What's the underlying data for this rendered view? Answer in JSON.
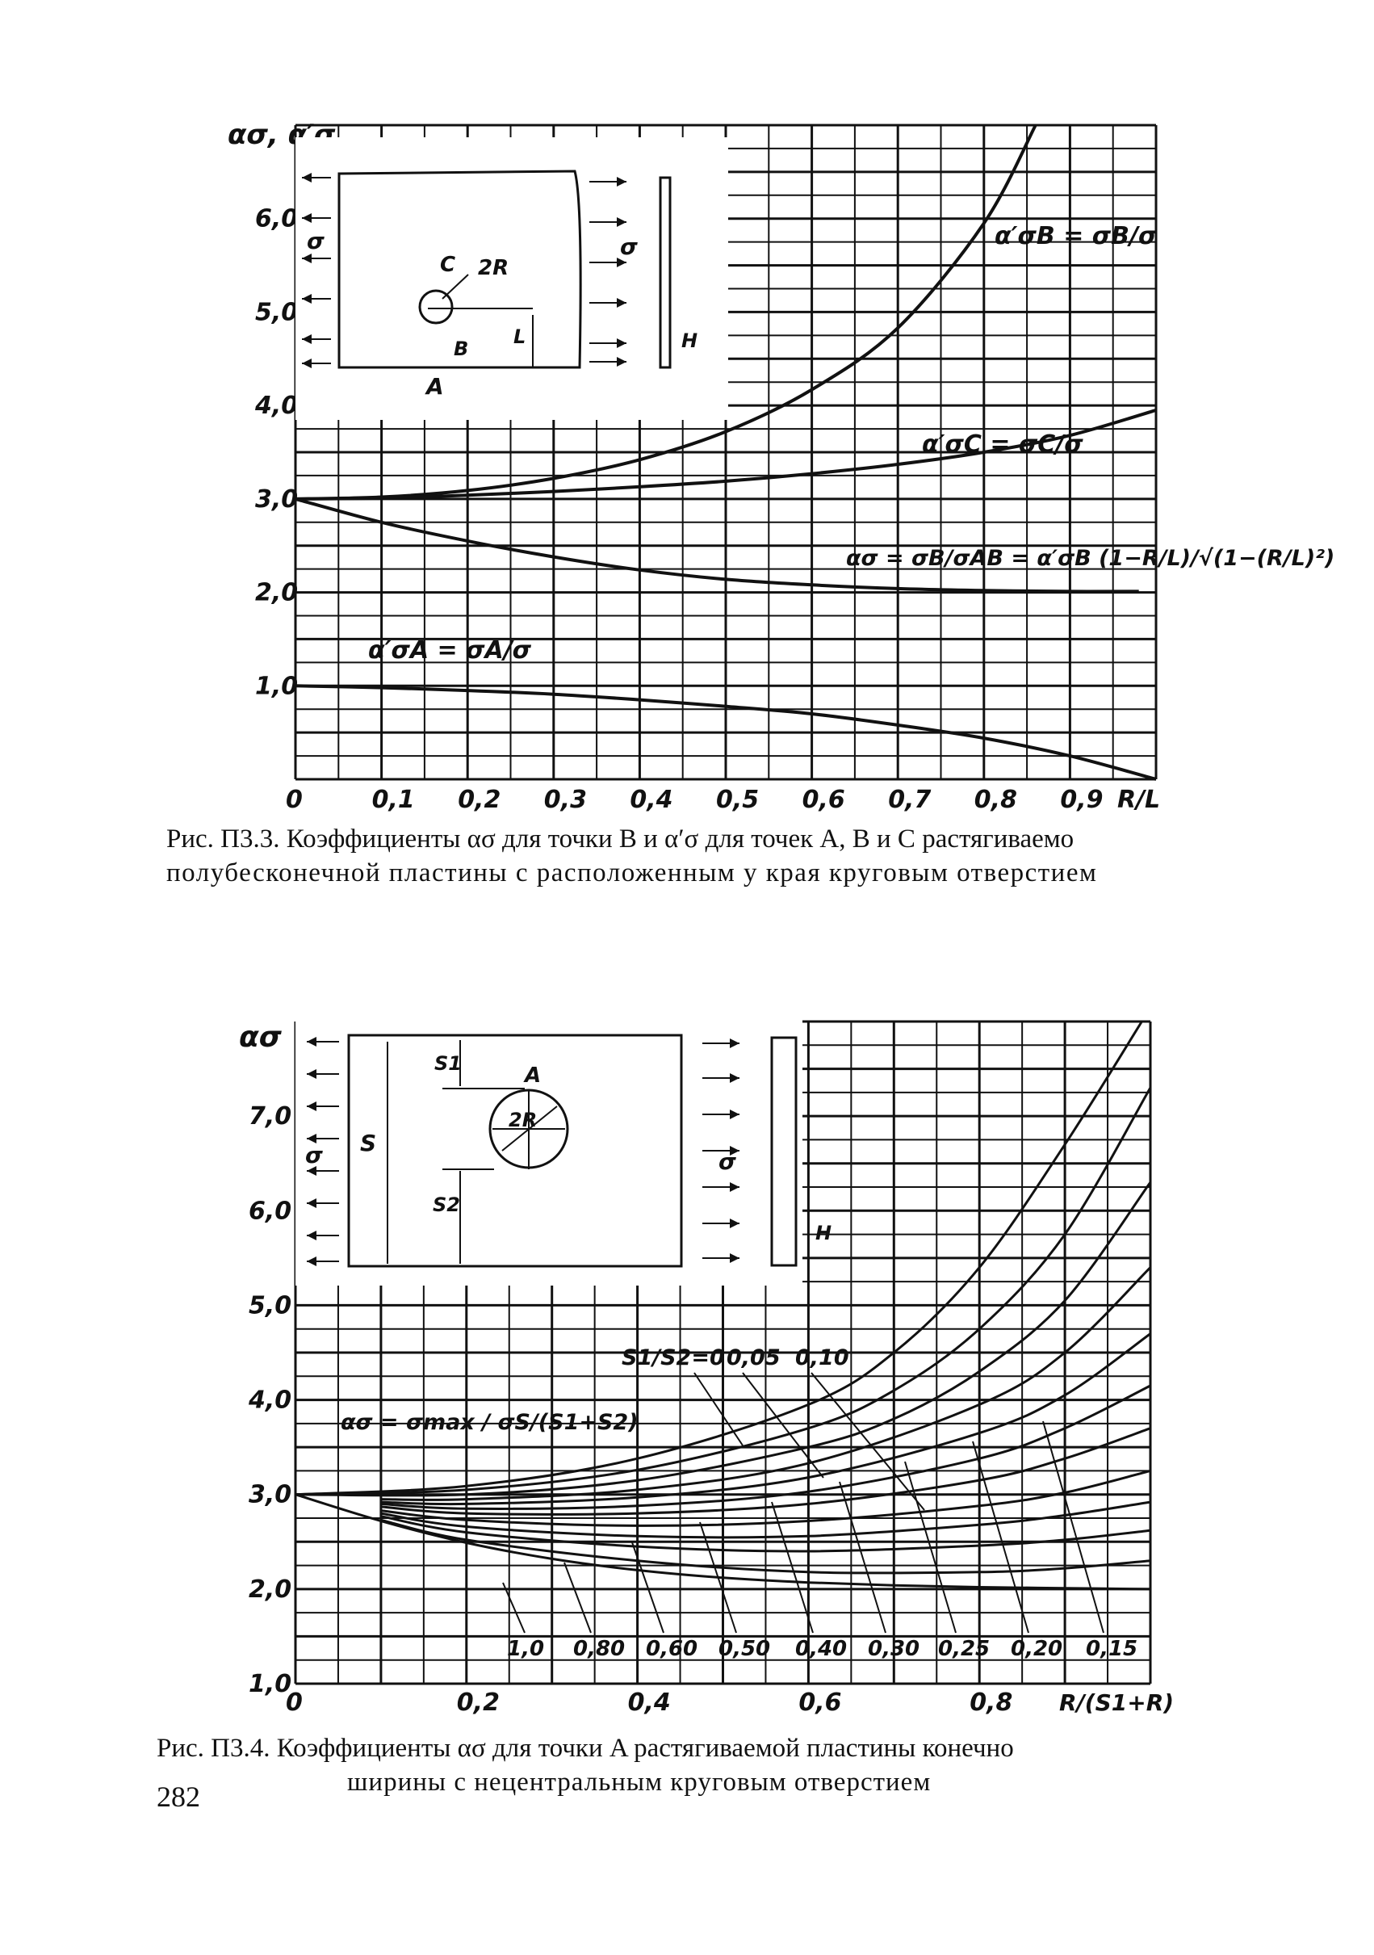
{
  "page_number": "282",
  "captions": {
    "fig1_line1": "Рис. П3.3. Коэффициенты ασ для точки B и α′σ для точек A, B и C растягиваемо",
    "fig1_line2": "полубесконечной пластины с расположенным у края круговым отверстием",
    "fig2_line1": "Рис. П3.4. Коэффициенты ασ для точки A растягиваемой пластины конечно",
    "fig2_line2": "ширины с нецентральным круговым отверстием"
  },
  "chart_data": [
    {
      "type": "line",
      "ylabel": "ασ, α′σ",
      "xlabel": "R/L",
      "xlim": [
        0,
        1.0
      ],
      "ylim": [
        0,
        7.0
      ],
      "grid": true,
      "x_tick_labels": [
        "0",
        "0,1",
        "0,2",
        "0,3",
        "0,4",
        "0,5",
        "0,6",
        "0,7",
        "0,8",
        "0,9"
      ],
      "y_tick_labels": [
        "1,0",
        "2,0",
        "3,0",
        "4,0",
        "5,0",
        "6,0"
      ],
      "annotations": [
        "α′σB = σB/σ",
        "α′σC = σC/σ",
        "ασ = σB/σAB = α′σB (1−R/L)/√(1−(R/L)²)",
        "α′σA = σA/σ"
      ],
      "inset_labels": [
        "σ",
        "σ",
        "C",
        "2R",
        "B",
        "A",
        "L",
        "H"
      ],
      "series": [
        {
          "x": [
            0,
            0.1,
            0.2,
            0.3,
            0.4,
            0.5,
            0.6,
            0.7,
            0.8,
            0.86
          ],
          "values": [
            3.0,
            3.02,
            3.09,
            3.22,
            3.42,
            3.72,
            4.17,
            4.83,
            5.95,
            7.0
          ]
        },
        {
          "x": [
            0,
            0.1,
            0.2,
            0.3,
            0.4,
            0.5,
            0.6,
            0.7,
            0.8,
            0.9,
            1.0
          ],
          "values": [
            3.0,
            3.01,
            3.04,
            3.08,
            3.13,
            3.19,
            3.27,
            3.37,
            3.5,
            3.68,
            3.95
          ]
        },
        {
          "x": [
            0,
            0.1,
            0.2,
            0.3,
            0.4,
            0.5,
            0.6,
            0.7,
            0.8,
            0.9,
            0.98
          ],
          "values": [
            3.0,
            2.75,
            2.55,
            2.38,
            2.24,
            2.14,
            2.08,
            2.04,
            2.02,
            2.01,
            2.01
          ]
        },
        {
          "x": [
            0,
            0.1,
            0.2,
            0.3,
            0.4,
            0.5,
            0.6,
            0.7,
            0.8,
            0.9,
            1.0
          ],
          "values": [
            1.0,
            0.98,
            0.95,
            0.91,
            0.85,
            0.78,
            0.7,
            0.58,
            0.44,
            0.25,
            0.0
          ]
        }
      ]
    },
    {
      "type": "line",
      "ylabel": "ασ",
      "xlabel": "R/(S1+R)",
      "xlim": [
        0,
        1.0
      ],
      "ylim": [
        1.0,
        8.0
      ],
      "grid": true,
      "x_tick_labels": [
        "0",
        "0,2",
        "0,4",
        "0,6",
        "0,8"
      ],
      "y_tick_labels": [
        "1,0",
        "2,0",
        "3,0",
        "4,0",
        "5,0",
        "6,0",
        "7,0"
      ],
      "formula": "ασ = σmax / σS/(S1+S2)",
      "curve_labels_top": [
        "S1/S2=0",
        "0,05",
        "0,10"
      ],
      "curve_labels_bottom": [
        "1,0",
        "0,80",
        "0,60",
        "0,50",
        "0,40",
        "0,30",
        "0,25",
        "0,20",
        "0,15"
      ],
      "inset_labels": [
        "S1",
        "A",
        "2R",
        "S",
        "σ",
        "σ",
        "S2",
        "H"
      ],
      "series": [
        {
          "name": "0",
          "x": [
            0,
            0.2,
            0.4,
            0.6,
            0.7,
            0.8,
            0.9,
            0.99
          ],
          "values": [
            3.0,
            3.09,
            3.38,
            3.95,
            4.5,
            5.4,
            6.7,
            8.0
          ]
        },
        {
          "name": "0,05",
          "x": [
            0,
            0.2,
            0.4,
            0.6,
            0.7,
            0.8,
            0.9,
            1.0
          ],
          "values": [
            3.0,
            3.05,
            3.26,
            3.7,
            4.1,
            4.75,
            5.75,
            7.3
          ]
        },
        {
          "name": "0,10",
          "x": [
            0,
            0.2,
            0.4,
            0.6,
            0.7,
            0.8,
            0.9,
            1.0
          ],
          "values": [
            3.0,
            3.0,
            3.15,
            3.5,
            3.8,
            4.3,
            5.05,
            6.3
          ]
        },
        {
          "name": "0,15",
          "x": [
            0.1,
            0.2,
            0.4,
            0.6,
            0.8,
            0.9,
            1.0
          ],
          "values": [
            2.95,
            2.95,
            3.05,
            3.33,
            3.95,
            4.5,
            5.4
          ]
        },
        {
          "name": "0,20",
          "x": [
            0.1,
            0.2,
            0.4,
            0.6,
            0.8,
            0.9,
            1.0
          ],
          "values": [
            2.92,
            2.9,
            2.97,
            3.18,
            3.65,
            4.05,
            4.7
          ]
        },
        {
          "name": "0,25",
          "x": [
            0.1,
            0.2,
            0.4,
            0.6,
            0.8,
            0.9,
            1.0
          ],
          "values": [
            2.9,
            2.85,
            2.88,
            3.03,
            3.38,
            3.7,
            4.15
          ]
        },
        {
          "name": "0,30",
          "x": [
            0.1,
            0.2,
            0.4,
            0.6,
            0.8,
            0.9,
            1.0
          ],
          "values": [
            2.87,
            2.8,
            2.8,
            2.9,
            3.15,
            3.38,
            3.7
          ]
        },
        {
          "name": "0,40",
          "x": [
            0.1,
            0.2,
            0.4,
            0.6,
            0.8,
            0.9,
            1.0
          ],
          "values": [
            2.83,
            2.73,
            2.67,
            2.72,
            2.88,
            3.02,
            3.25
          ]
        },
        {
          "name": "0,50",
          "x": [
            0.1,
            0.2,
            0.4,
            0.6,
            0.8,
            0.9,
            1.0
          ],
          "values": [
            2.8,
            2.66,
            2.56,
            2.56,
            2.68,
            2.78,
            2.92
          ]
        },
        {
          "name": "0,60",
          "x": [
            0.1,
            0.2,
            0.4,
            0.6,
            0.8,
            0.9,
            1.0
          ],
          "values": [
            2.77,
            2.6,
            2.45,
            2.4,
            2.46,
            2.52,
            2.62
          ]
        },
        {
          "name": "0,80",
          "x": [
            0.1,
            0.2,
            0.4,
            0.6,
            0.8,
            0.9,
            1.0
          ],
          "values": [
            2.73,
            2.52,
            2.3,
            2.18,
            2.18,
            2.22,
            2.3
          ]
        },
        {
          "name": "1,0",
          "x": [
            0,
            0.1,
            0.2,
            0.3,
            0.4,
            0.5,
            0.6,
            0.7,
            0.8,
            0.9,
            1.0
          ],
          "values": [
            3.0,
            2.72,
            2.49,
            2.32,
            2.2,
            2.12,
            2.07,
            2.04,
            2.02,
            2.01,
            2.0
          ]
        }
      ]
    }
  ]
}
